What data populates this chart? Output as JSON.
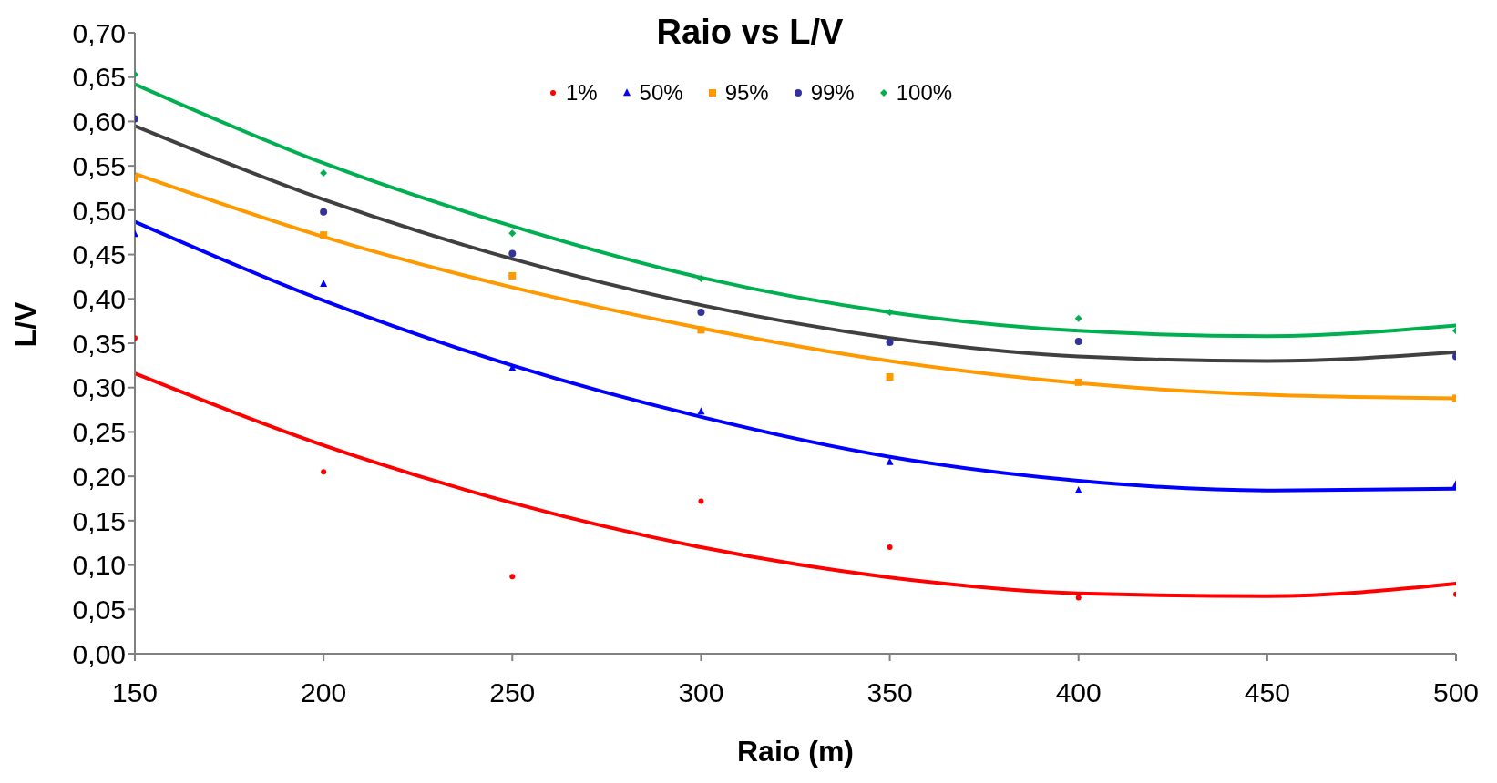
{
  "chart_data": {
    "type": "scatter",
    "title": "Raio vs L/V",
    "xlabel": "Raio (m)",
    "ylabel": "L/V",
    "x": [
      150,
      200,
      250,
      300,
      350,
      400,
      500
    ],
    "series": [
      {
        "name": "1%",
        "color": "#ff0000",
        "marker": "circle",
        "values": [
          0.356,
          0.205,
          0.087,
          0.172,
          0.12,
          0.063,
          0.067
        ]
      },
      {
        "name": "50%",
        "color": "#0000ff",
        "marker": "triangle",
        "values": [
          0.473,
          0.417,
          0.322,
          0.273,
          0.216,
          0.184,
          0.191
        ]
      },
      {
        "name": "95%",
        "color": "#ff9900",
        "marker": "square",
        "values": [
          0.536,
          0.472,
          0.426,
          0.365,
          0.312,
          0.306,
          0.288
        ]
      },
      {
        "name": "99%",
        "color": "#333399",
        "marker": "circle",
        "values": [
          0.603,
          0.498,
          0.451,
          0.385,
          0.351,
          0.352,
          0.335
        ]
      },
      {
        "name": "100%",
        "color": "#00b050",
        "marker": "diamond",
        "values": [
          0.653,
          0.542,
          0.474,
          0.423,
          0.385,
          0.378,
          0.364
        ]
      },
      {
        "type": "line",
        "color": "#ff0000",
        "marker": "none",
        "line_style": "solid",
        "x": [
          150,
          200,
          250,
          300,
          350,
          400,
          450,
          500
        ],
        "values": [
          0.316,
          0.235,
          0.17,
          0.12,
          0.086,
          0.068,
          0.065,
          0.079
        ]
      },
      {
        "type": "line",
        "color": "#0000ff",
        "marker": "none",
        "line_style": "solid",
        "x": [
          150,
          200,
          250,
          300,
          350,
          400,
          450,
          500
        ],
        "values": [
          0.487,
          0.398,
          0.325,
          0.267,
          0.222,
          0.195,
          0.184,
          0.186
        ]
      },
      {
        "type": "line",
        "color": "#ff9900",
        "marker": "none",
        "line_style": "solid",
        "x": [
          150,
          200,
          250,
          300,
          350,
          400,
          450,
          500
        ],
        "values": [
          0.541,
          0.47,
          0.413,
          0.367,
          0.33,
          0.305,
          0.292,
          0.288
        ]
      },
      {
        "type": "line",
        "color": "#404040",
        "marker": "none",
        "line_style": "solid",
        "x": [
          150,
          200,
          250,
          300,
          350,
          400,
          450,
          500
        ],
        "values": [
          0.595,
          0.512,
          0.445,
          0.393,
          0.356,
          0.335,
          0.33,
          0.34
        ]
      },
      {
        "type": "line",
        "color": "#00b050",
        "marker": "none",
        "line_style": "solid",
        "x": [
          150,
          200,
          250,
          300,
          350,
          400,
          450,
          500
        ],
        "values": [
          0.642,
          0.553,
          0.482,
          0.424,
          0.385,
          0.364,
          0.358,
          0.37
        ]
      }
    ],
    "xlim": [
      150,
      500
    ],
    "xticks": [
      150,
      200,
      250,
      300,
      350,
      400,
      450,
      500
    ],
    "ylim": [
      0,
      0.7
    ],
    "yticks": [
      {
        "value": 0,
        "label": "0,00"
      },
      {
        "value": 0.05,
        "label": "0,05"
      },
      {
        "value": 0.1,
        "label": "0,10"
      },
      {
        "value": 0.15,
        "label": "0,15"
      },
      {
        "value": 0.2,
        "label": "0,20"
      },
      {
        "value": 0.25,
        "label": "0,25"
      },
      {
        "value": 0.3,
        "label": "0,30"
      },
      {
        "value": 0.35,
        "label": "0,35"
      },
      {
        "value": 0.4,
        "label": "0,40"
      },
      {
        "value": 0.45,
        "label": "0,45"
      },
      {
        "value": 0.5,
        "label": "0,50"
      },
      {
        "value": 0.55,
        "label": "0,55"
      },
      {
        "value": 0.6,
        "label": "0,60"
      },
      {
        "value": 0.65,
        "label": "0,65"
      },
      {
        "value": 0.7,
        "label": "0,70"
      }
    ],
    "grid": false,
    "legend": "top"
  }
}
